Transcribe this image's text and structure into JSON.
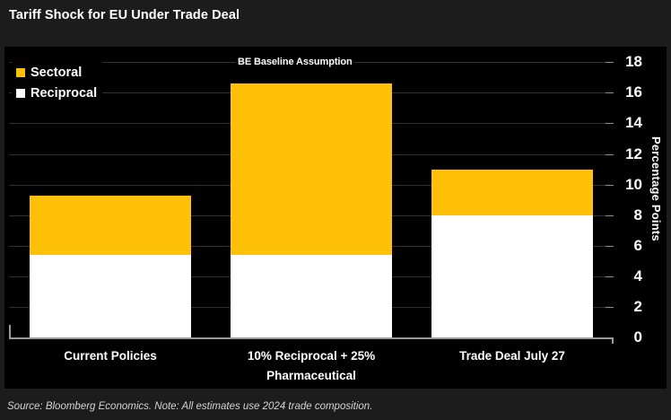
{
  "title": "Tariff Shock for EU Under Trade Deal",
  "source_note": "Source: Bloomberg Economics. Note: All estimates use 2024 trade composition.",
  "legend": [
    {
      "label": "Sectoral",
      "color": "#ffc107"
    },
    {
      "label": "Reciprocal",
      "color": "#ffffff"
    }
  ],
  "colors": {
    "background": "#1c1c1c",
    "plot_background": "#000000",
    "sectoral": "#ffc107",
    "reciprocal": "#ffffff",
    "gridline": "#313131",
    "axis": "#9a9a9a",
    "text": "#ffffff"
  },
  "chart_data": {
    "type": "bar",
    "stacked": true,
    "title": "Tariff Shock for EU Under Trade Deal",
    "annotation": "BE Baseline Assumption",
    "categories": [
      "Current Policies",
      "10% Reciprocal + 25% Pharmaceutical",
      "Trade Deal July 27"
    ],
    "series": [
      {
        "name": "Reciprocal",
        "color": "#ffffff",
        "values": [
          5.4,
          5.4,
          8.0
        ]
      },
      {
        "name": "Sectoral",
        "color": "#ffc107",
        "values": [
          3.9,
          11.2,
          3.0
        ]
      }
    ],
    "totals": [
      9.3,
      16.6,
      11.0
    ],
    "xlabel": "",
    "ylabel": "Percentage Points",
    "ylim": [
      0,
      18
    ],
    "yticks": [
      0,
      2,
      4,
      6,
      8,
      10,
      12,
      14,
      16,
      18
    ],
    "grid": true,
    "legend_position": "top-left",
    "y_axis_side": "right"
  }
}
